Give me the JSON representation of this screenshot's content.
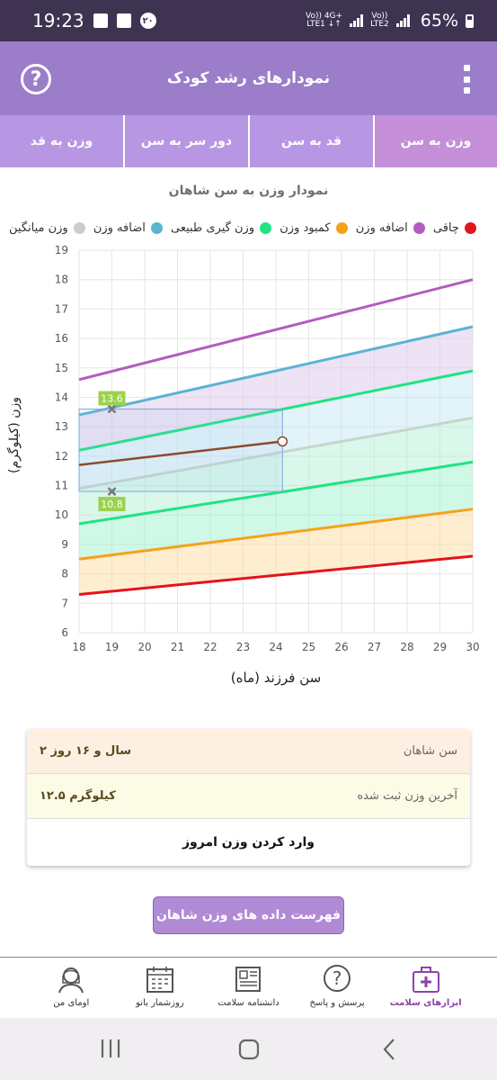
{
  "status_bar": {
    "time": "19:23",
    "notification_badge": "۲۰",
    "net1": "Vo)) 4G+",
    "net1b": "LTE1 ↓↑",
    "net2": "Vo))",
    "net2b": "LTE2",
    "battery": "65%"
  },
  "app_bar": {
    "title": "نمودارهای رشد کودک"
  },
  "tabs": [
    {
      "label": "وزن به سن",
      "active": true
    },
    {
      "label": "قد به سن",
      "active": false
    },
    {
      "label": "دور سر به سن",
      "active": false
    },
    {
      "label": "وزن به قد",
      "active": false
    }
  ],
  "chart": {
    "title": "نمودار وزن به سن شاهان",
    "legend": [
      {
        "label": "چاقی",
        "color": "#e3141b"
      },
      {
        "label": "اضافه وزن",
        "color": "#b25cbf"
      },
      {
        "label": "کمبود وزن",
        "color": "#f5a21b"
      },
      {
        "label": "وزن گیری طبیعی",
        "color": "#21e383"
      },
      {
        "label": "اضافه وزن",
        "color": "#5ab4d2"
      },
      {
        "label": "وزن میانگین",
        "color": "#cccccc"
      }
    ],
    "ylabel": "وزن (کیلوگرم)",
    "xlabel": "سن فرزند (ماه)"
  },
  "chart_data": {
    "type": "line",
    "xlim": [
      18,
      30
    ],
    "ylim": [
      6,
      19
    ],
    "x_ticks": [
      18,
      19,
      20,
      21,
      22,
      23,
      24,
      25,
      26,
      27,
      28,
      29,
      30
    ],
    "y_ticks": [
      6,
      7,
      8,
      9,
      10,
      11,
      12,
      13,
      14,
      15,
      16,
      17,
      18,
      19
    ],
    "grid": true,
    "bands": [
      {
        "name": "red",
        "color": "#e3141b",
        "fill": "rgba(250,170,170,0.45)",
        "x": [
          18,
          30
        ],
        "y": [
          7.3,
          8.6
        ]
      },
      {
        "name": "orange",
        "color": "#f5a21b",
        "fill": "rgba(255,215,150,0.45)",
        "x": [
          18,
          30
        ],
        "y": [
          8.5,
          10.2
        ]
      },
      {
        "name": "green-low",
        "color": "#21e383",
        "fill": "rgba(150,240,200,0.45)",
        "x": [
          18,
          30
        ],
        "y": [
          9.7,
          11.8
        ]
      },
      {
        "name": "gray-median",
        "color": "#c6d6cc",
        "fill": "rgba(170,240,210,0.45)",
        "x": [
          18,
          30
        ],
        "y": [
          10.9,
          13.3
        ]
      },
      {
        "name": "green-high",
        "color": "#21e383",
        "fill": "rgba(190,230,245,0.45)",
        "x": [
          18,
          30
        ],
        "y": [
          12.2,
          14.9
        ]
      },
      {
        "name": "blue",
        "color": "#5ab4d2",
        "fill": "rgba(220,200,235,0.5)",
        "x": [
          18,
          30
        ],
        "y": [
          13.4,
          16.4
        ]
      },
      {
        "name": "purple",
        "color": "#b25cbf",
        "fill": "none",
        "x": [
          18,
          30
        ],
        "y": [
          14.6,
          18.0
        ]
      }
    ],
    "child_series": {
      "name": "شاهان",
      "color": "#8b4a2b",
      "x": [
        18,
        24.2
      ],
      "y": [
        11.7,
        12.5
      ]
    },
    "markers": [
      {
        "x": 19,
        "y": 13.6,
        "label": "13.6"
      },
      {
        "x": 19,
        "y": 10.8,
        "label": "10.8"
      }
    ],
    "crosshair": {
      "x": 24.2,
      "y_top": 13.6,
      "y_bottom": 10.8
    }
  },
  "info": {
    "age_label": "سن شاهان",
    "age_value": "۲ سال و ۱۶ روز",
    "weight_label": "آخرین وزن ثبت شده",
    "weight_value": "۱۲.۵ کیلوگرم",
    "enter_today": "وارد کردن وزن امروز"
  },
  "list_button": "فهرست داده های وزن شاهان",
  "bottom_nav": [
    {
      "label": "ابزارهای سلامت",
      "icon": "medical-kit-icon",
      "active": true
    },
    {
      "label": "پرسش و پاسخ",
      "icon": "question-icon",
      "active": false
    },
    {
      "label": "دانشنامه سلامت",
      "icon": "newspaper-icon",
      "active": false
    },
    {
      "label": "روزشمار بانو",
      "icon": "calendar-icon",
      "active": false
    },
    {
      "label": "اومای من",
      "icon": "woman-avatar-icon",
      "active": false
    }
  ]
}
